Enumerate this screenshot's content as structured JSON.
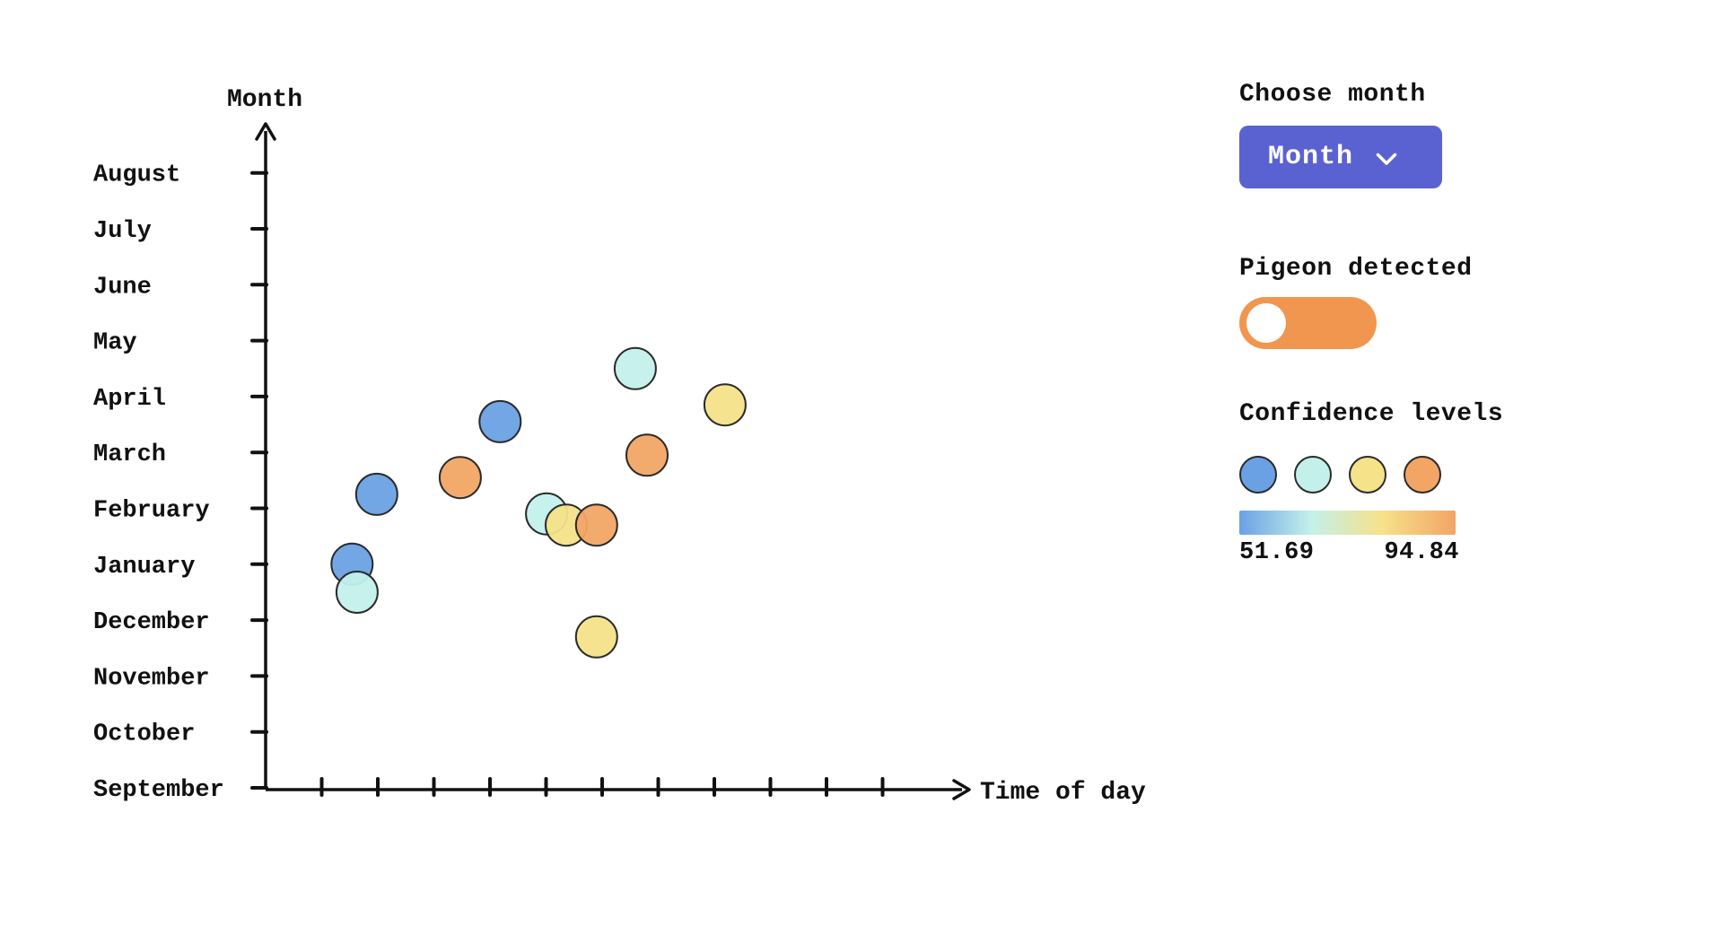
{
  "colors": {
    "background": "#FFFFFF",
    "text": "#111111",
    "axis": "#111111",
    "accent_button": "#5A62D2",
    "toggle_on": "#F0964E",
    "bubble_stroke": "#2B2B2B",
    "bubble_palette": {
      "blue": "#6AA1E4",
      "cyan": "#C3F0EB",
      "yellow": "#F6E289",
      "orange": "#F2A565"
    }
  },
  "chart_data": {
    "type": "scatter",
    "title": "",
    "xlabel": "Time of day",
    "ylabel": "Month",
    "y_categories_bottom_to_top": [
      "September",
      "October",
      "November",
      "December",
      "January",
      "February",
      "March",
      "April",
      "May",
      "June",
      "July",
      "August"
    ],
    "x_tick_count": 11,
    "points": [
      {
        "x": 4.18,
        "y": 6.55,
        "color": "blue"
      },
      {
        "x": 6.59,
        "y": 7.5,
        "color": "cyan"
      },
      {
        "x": 8.19,
        "y": 6.85,
        "color": "yellow"
      },
      {
        "x": 6.8,
        "y": 5.95,
        "color": "orange"
      },
      {
        "x": 3.47,
        "y": 5.55,
        "color": "orange"
      },
      {
        "x": 1.98,
        "y": 5.25,
        "color": "blue"
      },
      {
        "x": 1.54,
        "y": 4.0,
        "color": "blue"
      },
      {
        "x": 1.63,
        "y": 3.5,
        "color": "cyan"
      },
      {
        "x": 5.01,
        "y": 4.9,
        "color": "cyan"
      },
      {
        "x": 5.36,
        "y": 4.7,
        "color": "yellow"
      },
      {
        "x": 5.9,
        "y": 4.7,
        "color": "orange"
      },
      {
        "x": 5.9,
        "y": 2.7,
        "color": "yellow"
      }
    ],
    "legend": {
      "label": "Confidence levels",
      "swatches": [
        "blue",
        "cyan",
        "yellow",
        "orange"
      ],
      "min": 51.69,
      "max": 94.84
    }
  },
  "panel": {
    "choose_month_label": "Choose month",
    "month_dropdown": {
      "value": "Month"
    },
    "pigeon_detected_label": "Pigeon detected",
    "confidence_levels_label": "Confidence levels",
    "confidence": {
      "min": "51.69",
      "max": "94.84"
    }
  }
}
